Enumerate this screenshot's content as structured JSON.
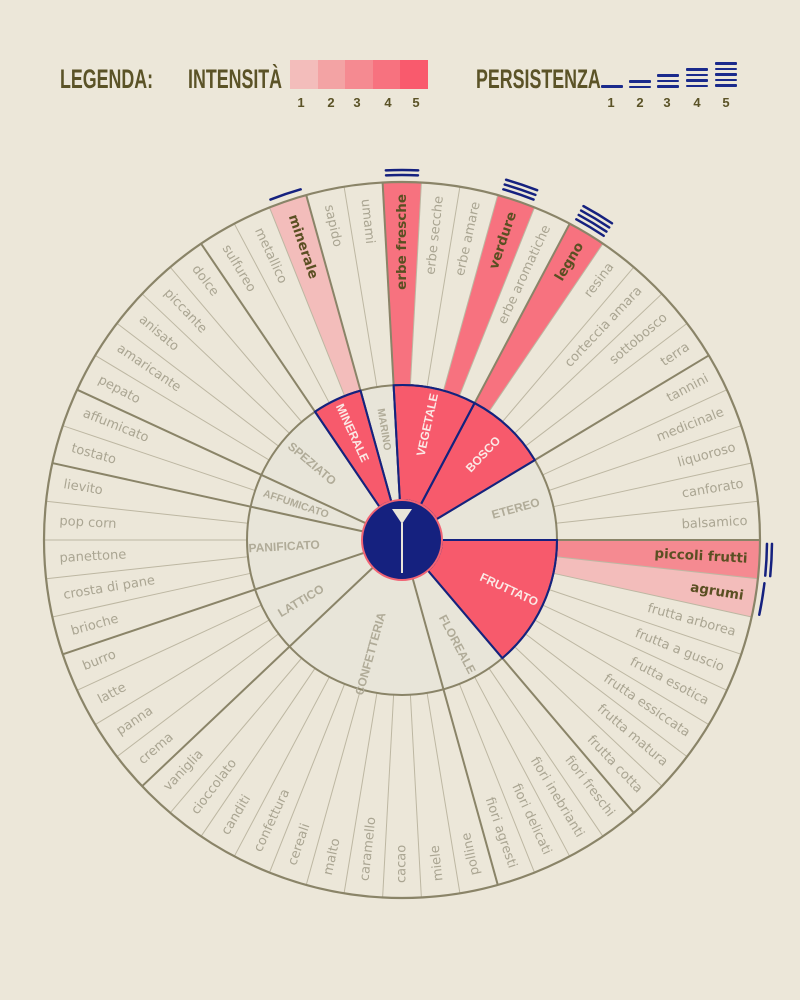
{
  "legend": {
    "title": "LEGENDA:",
    "intensity_label": "INTENSITÀ",
    "intensity_levels": [
      "1",
      "2",
      "3",
      "4",
      "5"
    ],
    "intensity_colors": [
      "#f3bdbb",
      "#f3a3a4",
      "#f58a91",
      "#f7727f",
      "#f95a6d"
    ],
    "persistence_label": "PERSISTENZA",
    "persistence_levels": [
      "1",
      "2",
      "3",
      "4",
      "5"
    ]
  },
  "colors": {
    "background": "#ece7d9",
    "ring_fill": "#e8e5d9",
    "highlight_category": "#f75a6c",
    "navy": "#15217f",
    "line": "#8a8468",
    "text_muted": "#aaa592",
    "text_bold": "#5a4f22"
  },
  "wheel": {
    "hub_icon": "cocktail-glass-icon",
    "categories": [
      {
        "name": "FRUTTATO",
        "highlight": true,
        "items": [
          {
            "label": "piccoli frutti",
            "intensity": 3,
            "persistence": 2
          },
          {
            "label": "agrumi",
            "intensity": 1,
            "persistence": 1
          },
          {
            "label": "frutta arborea"
          },
          {
            "label": "frutta a guscio"
          },
          {
            "label": "frutta esotica"
          },
          {
            "label": "frutta essiccata"
          },
          {
            "label": "frutta matura"
          },
          {
            "label": "frutta cotta"
          }
        ]
      },
      {
        "name": "FLOREALE",
        "highlight": false,
        "items": [
          {
            "label": "fiori freschi"
          },
          {
            "label": "fiori inebrianti"
          },
          {
            "label": "fiori delicati"
          },
          {
            "label": "fiori agresti"
          }
        ]
      },
      {
        "name": "CONFETTERIA",
        "highlight": false,
        "items": [
          {
            "label": "polline"
          },
          {
            "label": "miele"
          },
          {
            "label": "cacao"
          },
          {
            "label": "caramello"
          },
          {
            "label": "malto"
          },
          {
            "label": "cereali"
          },
          {
            "label": "confettura"
          },
          {
            "label": "canditi"
          },
          {
            "label": "cioccolato"
          },
          {
            "label": "vaniglia"
          }
        ]
      },
      {
        "name": "LATTICO",
        "highlight": false,
        "items": [
          {
            "label": "crema"
          },
          {
            "label": "panna"
          },
          {
            "label": "latte"
          },
          {
            "label": "burro"
          }
        ]
      },
      {
        "name": "PANIFICATO",
        "highlight": false,
        "items": [
          {
            "label": "brioche"
          },
          {
            "label": "crosta di pane"
          },
          {
            "label": "panettone"
          },
          {
            "label": "pop corn"
          },
          {
            "label": "lievito"
          }
        ]
      },
      {
        "name": "AFFUMICATO",
        "highlight": false,
        "items": [
          {
            "label": "tostato"
          },
          {
            "label": "affumicato"
          }
        ]
      },
      {
        "name": "SPEZIATO",
        "highlight": false,
        "items": [
          {
            "label": "pepato"
          },
          {
            "label": "amaricante"
          },
          {
            "label": "anisato"
          },
          {
            "label": "piccante"
          },
          {
            "label": "dolce"
          }
        ]
      },
      {
        "name": "MINERALE",
        "highlight": true,
        "items": [
          {
            "label": "sulfureo"
          },
          {
            "label": "metallico"
          },
          {
            "label": "minerale",
            "intensity": 1,
            "persistence": 1
          }
        ]
      },
      {
        "name": "MARINO",
        "highlight": false,
        "items": [
          {
            "label": "sapido"
          },
          {
            "label": "umami"
          }
        ]
      },
      {
        "name": "VEGETALE",
        "highlight": true,
        "items": [
          {
            "label": "erbe fresche",
            "intensity": 4,
            "persistence": 2
          },
          {
            "label": "erbe secche"
          },
          {
            "label": "erbe amare"
          },
          {
            "label": "verdure",
            "intensity": 4,
            "persistence": 3
          },
          {
            "label": "erbe aromatiche"
          }
        ]
      },
      {
        "name": "BOSCO",
        "highlight": true,
        "items": [
          {
            "label": "legno",
            "intensity": 4,
            "persistence": 4
          },
          {
            "label": "resina"
          },
          {
            "label": "corteccia amara"
          },
          {
            "label": "sottobosco"
          },
          {
            "label": "terra"
          }
        ]
      },
      {
        "name": "ETEREO",
        "highlight": false,
        "items": [
          {
            "label": "tannini"
          },
          {
            "label": "medicinale"
          },
          {
            "label": "liquoroso"
          },
          {
            "label": "canforato"
          },
          {
            "label": "balsamico"
          }
        ]
      }
    ]
  }
}
